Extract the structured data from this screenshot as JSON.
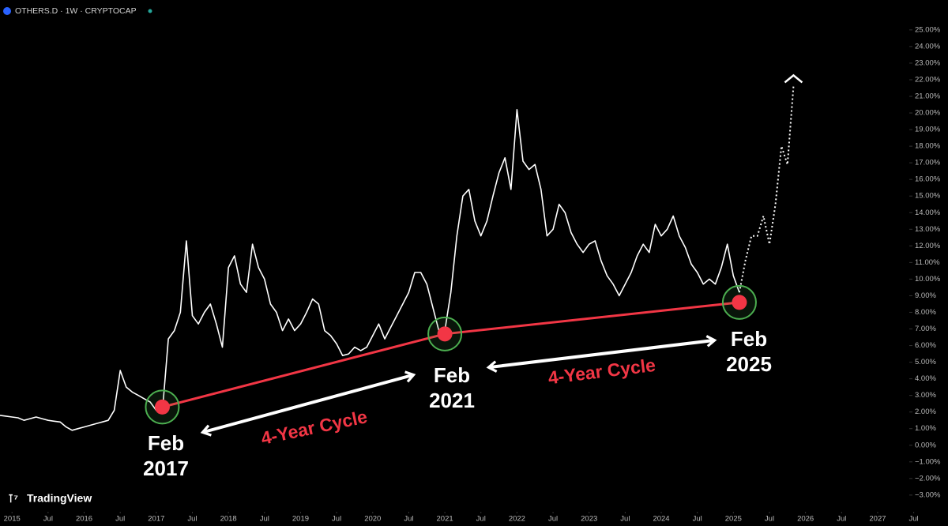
{
  "header": {
    "symbol": "OTHERS.D · 1W · CRYPTOCAP"
  },
  "brand": "TradingView",
  "chart_data": {
    "type": "line",
    "xlim": [
      "2014-11",
      "2027-06"
    ],
    "ylim": [
      -4.1,
      26.8
    ],
    "xticks": [
      {
        "value": "2015-01",
        "label": "2015"
      },
      {
        "value": "2015-07",
        "label": "Jul"
      },
      {
        "value": "2016-01",
        "label": "2016"
      },
      {
        "value": "2016-07",
        "label": "Jul"
      },
      {
        "value": "2017-01",
        "label": "2017"
      },
      {
        "value": "2017-07",
        "label": "Jul"
      },
      {
        "value": "2018-01",
        "label": "2018"
      },
      {
        "value": "2018-07",
        "label": "Jul"
      },
      {
        "value": "2019-01",
        "label": "2019"
      },
      {
        "value": "2019-07",
        "label": "Jul"
      },
      {
        "value": "2020-01",
        "label": "2020"
      },
      {
        "value": "2020-07",
        "label": "Jul"
      },
      {
        "value": "2021-01",
        "label": "2021"
      },
      {
        "value": "2021-07",
        "label": "Jul"
      },
      {
        "value": "2022-01",
        "label": "2022"
      },
      {
        "value": "2022-07",
        "label": "Jul"
      },
      {
        "value": "2023-01",
        "label": "2023"
      },
      {
        "value": "2023-07",
        "label": "Jul"
      },
      {
        "value": "2024-01",
        "label": "2024"
      },
      {
        "value": "2024-07",
        "label": "Jul"
      },
      {
        "value": "2025-01",
        "label": "2025"
      },
      {
        "value": "2025-07",
        "label": "Jul"
      },
      {
        "value": "2026-01",
        "label": "2026"
      },
      {
        "value": "2026-07",
        "label": "Jul"
      },
      {
        "value": "2027-01",
        "label": "2027"
      },
      {
        "value": "2027-07",
        "label": "Jul"
      }
    ],
    "yticks": [
      {
        "value": 25,
        "label": "25.00%"
      },
      {
        "value": 24,
        "label": "24.00%"
      },
      {
        "value": 23,
        "label": "23.00%"
      },
      {
        "value": 22,
        "label": "22.00%"
      },
      {
        "value": 21,
        "label": "21.00%"
      },
      {
        "value": 20,
        "label": "20.00%"
      },
      {
        "value": 19,
        "label": "19.00%"
      },
      {
        "value": 18,
        "label": "18.00%"
      },
      {
        "value": 17,
        "label": "17.00%"
      },
      {
        "value": 16,
        "label": "16.00%"
      },
      {
        "value": 15,
        "label": "15.00%"
      },
      {
        "value": 14,
        "label": "14.00%"
      },
      {
        "value": 13,
        "label": "13.00%"
      },
      {
        "value": 12,
        "label": "12.00%"
      },
      {
        "value": 11,
        "label": "11.00%"
      },
      {
        "value": 10,
        "label": "10.00%"
      },
      {
        "value": 9,
        "label": "9.00%"
      },
      {
        "value": 8,
        "label": "8.00%"
      },
      {
        "value": 7,
        "label": "7.00%"
      },
      {
        "value": 6,
        "label": "6.00%"
      },
      {
        "value": 5,
        "label": "5.00%"
      },
      {
        "value": 4,
        "label": "4.00%"
      },
      {
        "value": 3,
        "label": "3.00%"
      },
      {
        "value": 2,
        "label": "2.00%"
      },
      {
        "value": 1,
        "label": "1.00%"
      },
      {
        "value": 0,
        "label": "0.00%"
      },
      {
        "value": -1,
        "label": "−1.00%"
      },
      {
        "value": -2,
        "label": "−2.00%"
      },
      {
        "value": -3,
        "label": "−3.00%"
      }
    ],
    "series": [
      {
        "color": "#ffffff",
        "style": "solid",
        "x": [
          "2014-11",
          "2014-12",
          "2015-01",
          "2015-02",
          "2015-03",
          "2015-04",
          "2015-05",
          "2015-06",
          "2015-07",
          "2015-08",
          "2015-09",
          "2015-10",
          "2015-11",
          "2015-12",
          "2016-01",
          "2016-02",
          "2016-03",
          "2016-04",
          "2016-05",
          "2016-06",
          "2016-07",
          "2016-08",
          "2016-09",
          "2016-10",
          "2016-11",
          "2016-12",
          "2017-01",
          "2017-02",
          "2017-03",
          "2017-04",
          "2017-05",
          "2017-06",
          "2017-07",
          "2017-08",
          "2017-09",
          "2017-10",
          "2017-11",
          "2017-12",
          "2018-01",
          "2018-02",
          "2018-03",
          "2018-04",
          "2018-05",
          "2018-06",
          "2018-07",
          "2018-08",
          "2018-09",
          "2018-10",
          "2018-11",
          "2018-12",
          "2019-01",
          "2019-02",
          "2019-03",
          "2019-04",
          "2019-05",
          "2019-06",
          "2019-07",
          "2019-08",
          "2019-09",
          "2019-10",
          "2019-11",
          "2019-12",
          "2020-01",
          "2020-02",
          "2020-03",
          "2020-04",
          "2020-05",
          "2020-06",
          "2020-07",
          "2020-08",
          "2020-09",
          "2020-10",
          "2020-11",
          "2020-12",
          "2021-01",
          "2021-02",
          "2021-03",
          "2021-04",
          "2021-05",
          "2021-06",
          "2021-07",
          "2021-08",
          "2021-09",
          "2021-10",
          "2021-11",
          "2021-12",
          "2022-01",
          "2022-02",
          "2022-03",
          "2022-04",
          "2022-05",
          "2022-06",
          "2022-07",
          "2022-08",
          "2022-09",
          "2022-10",
          "2022-11",
          "2022-12",
          "2023-01",
          "2023-02",
          "2023-03",
          "2023-04",
          "2023-05",
          "2023-06",
          "2023-07",
          "2023-08",
          "2023-09",
          "2023-10",
          "2023-11",
          "2023-12",
          "2024-01",
          "2024-02",
          "2024-03",
          "2024-04",
          "2024-05",
          "2024-06",
          "2024-07",
          "2024-08",
          "2024-09",
          "2024-10",
          "2024-11",
          "2024-12",
          "2025-01",
          "2025-02"
        ],
        "values": [
          1.8,
          1.75,
          1.7,
          1.65,
          1.5,
          1.6,
          1.7,
          1.6,
          1.5,
          1.45,
          1.4,
          1.1,
          0.9,
          1.0,
          1.1,
          1.2,
          1.3,
          1.4,
          1.5,
          2.1,
          4.5,
          3.5,
          3.2,
          3.0,
          2.8,
          2.6,
          2.1,
          2.0,
          6.4,
          6.9,
          8.0,
          12.3,
          7.8,
          7.3,
          8.0,
          8.5,
          7.3,
          5.9,
          10.7,
          11.4,
          9.7,
          9.2,
          12.1,
          10.7,
          10.0,
          8.5,
          8.0,
          6.9,
          7.6,
          6.9,
          7.3,
          8.0,
          8.8,
          8.5,
          6.9,
          6.6,
          6.1,
          5.4,
          5.5,
          5.9,
          5.7,
          5.9,
          6.6,
          7.3,
          6.4,
          7.1,
          7.8,
          8.5,
          9.2,
          10.4,
          10.4,
          9.7,
          8.3,
          6.9,
          6.9,
          9.2,
          12.6,
          15.0,
          15.4,
          13.5,
          12.6,
          13.5,
          15.0,
          16.4,
          17.3,
          15.4,
          20.2,
          17.1,
          16.6,
          16.9,
          15.4,
          12.6,
          13.0,
          14.5,
          14.0,
          12.8,
          12.1,
          11.6,
          12.1,
          12.3,
          11.1,
          10.2,
          9.7,
          9.0,
          9.7,
          10.4,
          11.4,
          12.1,
          11.6,
          13.3,
          12.6,
          13.0,
          13.8,
          12.6,
          11.9,
          10.9,
          10.4,
          9.7,
          10.0,
          9.7,
          10.7,
          12.1,
          10.2,
          9.2
        ]
      },
      {
        "color": "#ffffff",
        "style": "dotted",
        "x": [
          "2025-02",
          "2025-03",
          "2025-04",
          "2025-05",
          "2025-06",
          "2025-07",
          "2025-08",
          "2025-09",
          "2025-10",
          "2025-11"
        ],
        "values": [
          9.2,
          11.1,
          12.6,
          12.6,
          13.8,
          12.1,
          14.5,
          18.0,
          16.9,
          21.6
        ]
      }
    ],
    "cycle_line": {
      "color": "#f23645",
      "marker_ring": "#4caf50",
      "x": [
        "2017-02",
        "2021-01",
        "2025-02"
      ],
      "values": [
        2.3,
        6.7,
        8.6
      ]
    },
    "annotations": [
      {
        "month": "Feb",
        "year": "2017"
      },
      {
        "month": "Feb",
        "year": "2021"
      },
      {
        "month": "Feb",
        "year": "2025"
      }
    ],
    "cycle_labels": [
      "4-Year Cycle",
      "4-Year Cycle"
    ]
  }
}
